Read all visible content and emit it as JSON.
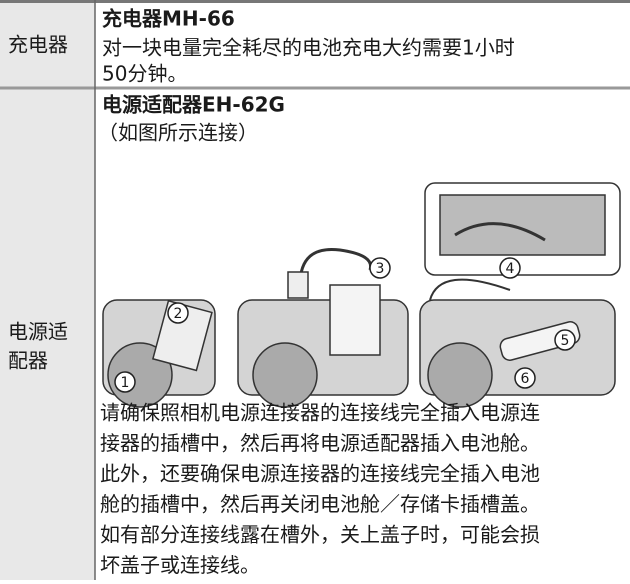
{
  "rows": [
    {
      "label_lines": [
        "充电器"
      ],
      "title": "充电器MH-66",
      "lines": [
        "对一块电量完全耗尽的电池充电大约需要1小时",
        "50分钟。"
      ]
    },
    {
      "label_lines": [
        "电源适",
        "配器"
      ],
      "title": "电源适配器EH-62G",
      "subtitle": "（如图所示连接）",
      "callouts": [
        "1",
        "2",
        "3",
        "4",
        "5",
        "6"
      ],
      "lines": [
        "请确保照相机电源连接器的连接线完全插入电源连",
        "接器的插槽中，然后再将电源适配器插入电池舱。",
        "此外，还要确保电源连接器的连接线完全插入电池",
        "舱的插槽中，然后再关闭电池舱／存储卡插槽盖。",
        "如有部分连接线露在槽外，关上盖子时，可能会损",
        "坏盖子或连接线。"
      ]
    }
  ]
}
